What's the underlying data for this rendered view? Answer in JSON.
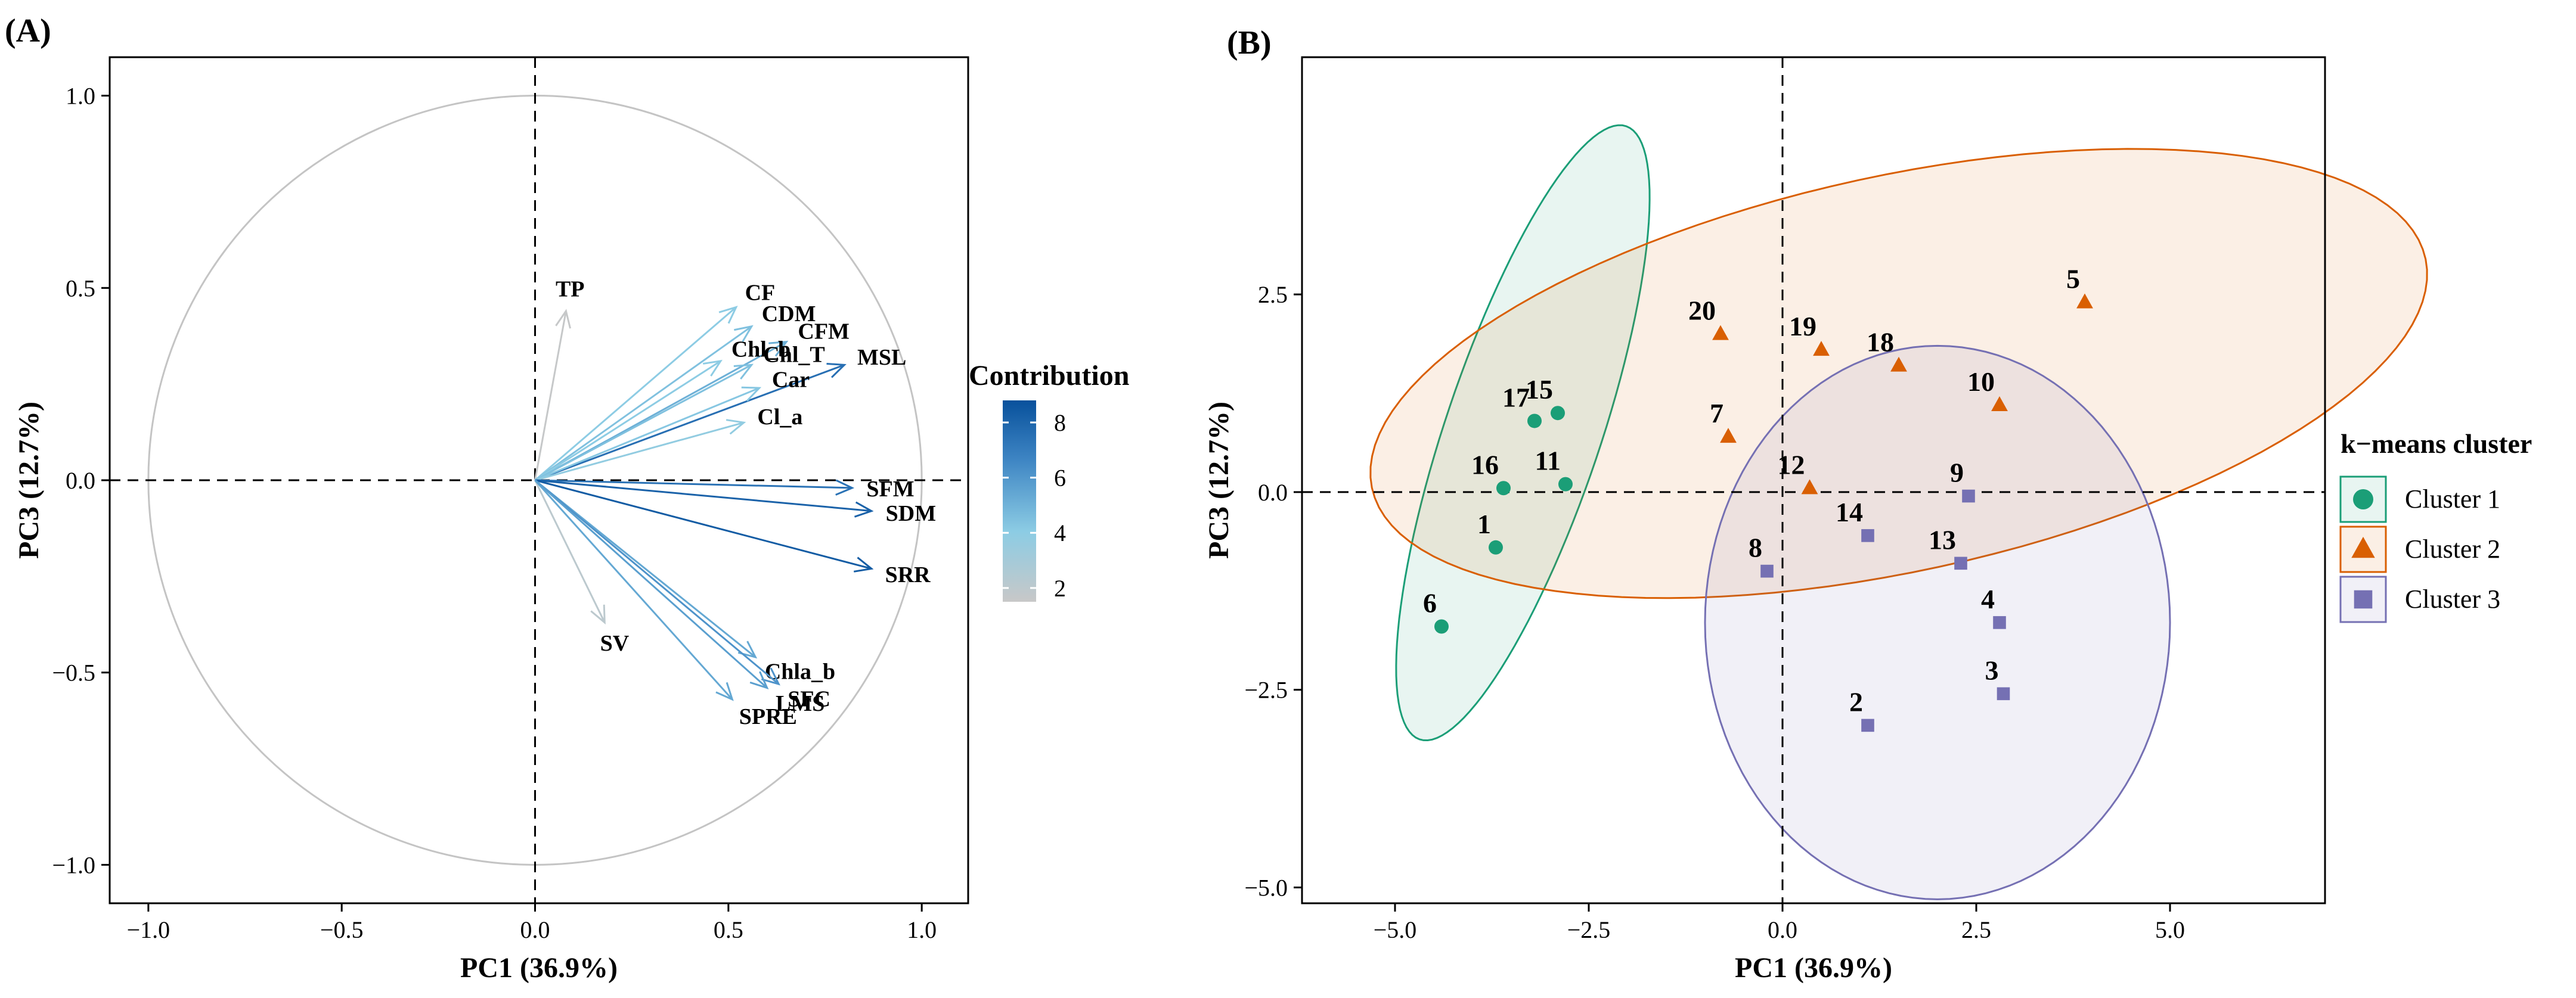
{
  "chart_data": [
    {
      "panel_label": "(A)",
      "type": "scatter",
      "subtype": "pca-variable-correlation-circle",
      "xlabel": "PC1 (36.9%)",
      "ylabel": "PC3 (12.7%)",
      "xlim": [
        -1.1,
        1.12
      ],
      "ylim": [
        -1.1,
        1.1
      ],
      "xticks": [
        -1.0,
        -0.5,
        0.0,
        0.5,
        1.0
      ],
      "xtick_labels": [
        "−1.0",
        "−0.5",
        "0.0",
        "0.5",
        "1.0"
      ],
      "yticks": [
        -1.0,
        -0.5,
        0.0,
        0.5,
        1.0
      ],
      "ytick_labels": [
        "−1.0",
        "−0.5",
        "0.0",
        "0.5",
        "1.0"
      ],
      "grid": false,
      "reference_lines": {
        "x": 0,
        "y": 0
      },
      "unit_circle": true,
      "colorbar": {
        "title": "Contribution",
        "range": [
          1.5,
          8.8
        ],
        "ticks": [
          2,
          4,
          6,
          8
        ],
        "tick_labels": [
          "2",
          "4",
          "6",
          "8"
        ],
        "colors": [
          "#c8c8c8",
          "#8ccce4",
          "#3f86c4",
          "#08519c"
        ]
      },
      "vectors": [
        {
          "name": "TP",
          "x": 0.08,
          "y": 0.44,
          "contrib": 1.6
        },
        {
          "name": "CF",
          "x": 0.52,
          "y": 0.45,
          "contrib": 3.9
        },
        {
          "name": "CDM",
          "x": 0.56,
          "y": 0.4,
          "contrib": 4.3
        },
        {
          "name": "CFM",
          "x": 0.65,
          "y": 0.36,
          "contrib": 4.9
        },
        {
          "name": "Chl_b",
          "x": 0.48,
          "y": 0.31,
          "contrib": 3.9
        },
        {
          "name": "Chl_T",
          "x": 0.56,
          "y": 0.3,
          "contrib": 4.3
        },
        {
          "name": "MSL",
          "x": 0.8,
          "y": 0.3,
          "contrib": 7.4
        },
        {
          "name": "Car",
          "x": 0.58,
          "y": 0.24,
          "contrib": 4.1
        },
        {
          "name": "Cl_a",
          "x": 0.54,
          "y": 0.15,
          "contrib": 3.7
        },
        {
          "name": "SFM",
          "x": 0.82,
          "y": -0.02,
          "contrib": 7.3
        },
        {
          "name": "SDM",
          "x": 0.87,
          "y": -0.08,
          "contrib": 8.0
        },
        {
          "name": "SRR",
          "x": 0.87,
          "y": -0.23,
          "contrib": 8.3
        },
        {
          "name": "SV",
          "x": 0.18,
          "y": -0.37,
          "contrib": 2.0
        },
        {
          "name": "Chla_b",
          "x": 0.57,
          "y": -0.46,
          "contrib": 5.2
        },
        {
          "name": "SFC",
          "x": 0.63,
          "y": -0.53,
          "contrib": 5.9
        },
        {
          "name": "SPRE",
          "x": 0.51,
          "y": -0.57,
          "contrib": 5.2
        },
        {
          "name": "LMS",
          "x": 0.6,
          "y": -0.54,
          "contrib": 5.5
        }
      ]
    },
    {
      "panel_label": "(B)",
      "type": "scatter",
      "subtype": "pca-individuals-kmeans",
      "xlabel": "PC1 (36.9%)",
      "ylabel": "PC3 (12.7%)",
      "xlim": [
        -6.2,
        7.0
      ],
      "ylim": [
        -5.2,
        5.5
      ],
      "xticks": [
        -5.0,
        -2.5,
        0.0,
        2.5,
        5.0
      ],
      "xtick_labels": [
        "−5.0",
        "−2.5",
        "0.0",
        "2.5",
        "5.0"
      ],
      "yticks": [
        -5.0,
        -2.5,
        0.0,
        2.5
      ],
      "ytick_labels": [
        "−5.0",
        "−2.5",
        "0.0",
        "2.5"
      ],
      "grid": false,
      "reference_lines": {
        "x": 0,
        "y": 0
      },
      "legend": {
        "title": "k−means cluster",
        "position": "right"
      },
      "clusters": [
        {
          "name": "Cluster 1",
          "color": "#1b9e77",
          "marker": "circle",
          "ellipse": {
            "cx": -3.35,
            "cy": 0.75,
            "rx": 4.1,
            "ry": 1.0,
            "angle_deg": 71
          }
        },
        {
          "name": "Cluster 2",
          "color": "#d95f02",
          "marker": "triangle",
          "ellipse": {
            "cx": 1.5,
            "cy": 1.5,
            "rx": 6.95,
            "ry": 2.5,
            "angle_deg": 12
          }
        },
        {
          "name": "Cluster 3",
          "color": "#7570b3",
          "marker": "square",
          "ellipse": {
            "cx": 2.0,
            "cy": -1.65,
            "rx": 3.0,
            "ry": 3.5,
            "angle_deg": 0
          }
        }
      ],
      "points": [
        {
          "id": "1",
          "x": -3.7,
          "y": -0.7,
          "cluster": 1
        },
        {
          "id": "6",
          "x": -4.4,
          "y": -1.7,
          "cluster": 1
        },
        {
          "id": "11",
          "x": -2.8,
          "y": 0.1,
          "cluster": 1
        },
        {
          "id": "15",
          "x": -2.9,
          "y": 1.0,
          "cluster": 1
        },
        {
          "id": "16",
          "x": -3.6,
          "y": 0.05,
          "cluster": 1
        },
        {
          "id": "17",
          "x": -3.2,
          "y": 0.9,
          "cluster": 1
        },
        {
          "id": "5",
          "x": 3.9,
          "y": 2.4,
          "cluster": 2
        },
        {
          "id": "7",
          "x": -0.7,
          "y": 0.7,
          "cluster": 2
        },
        {
          "id": "10",
          "x": 2.8,
          "y": 1.1,
          "cluster": 2
        },
        {
          "id": "12",
          "x": 0.35,
          "y": 0.05,
          "cluster": 2
        },
        {
          "id": "18",
          "x": 1.5,
          "y": 1.6,
          "cluster": 2
        },
        {
          "id": "19",
          "x": 0.5,
          "y": 1.8,
          "cluster": 2
        },
        {
          "id": "20",
          "x": -0.8,
          "y": 2.0,
          "cluster": 2
        },
        {
          "id": "2",
          "x": 1.1,
          "y": -2.95,
          "cluster": 3
        },
        {
          "id": "3",
          "x": 2.85,
          "y": -2.55,
          "cluster": 3
        },
        {
          "id": "4",
          "x": 2.8,
          "y": -1.65,
          "cluster": 3
        },
        {
          "id": "8",
          "x": -0.2,
          "y": -1.0,
          "cluster": 3
        },
        {
          "id": "9",
          "x": 2.4,
          "y": -0.05,
          "cluster": 3
        },
        {
          "id": "13",
          "x": 2.3,
          "y": -0.9,
          "cluster": 3
        },
        {
          "id": "14",
          "x": 1.1,
          "y": -0.55,
          "cluster": 3
        }
      ]
    }
  ]
}
